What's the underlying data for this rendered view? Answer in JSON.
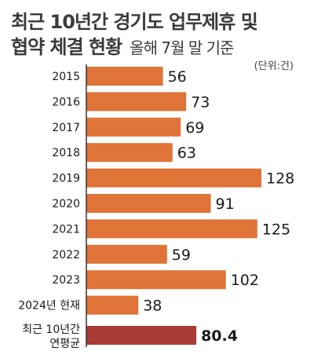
{
  "title": {
    "line1": "최근 10년간 경기도 업무제휴 및",
    "line2_main": "협약 체결 현황",
    "line2_sub": "올해 7월 말 기준"
  },
  "unit_label": "(단위:건)",
  "colors": {
    "bar": "#e07338",
    "avg_bar": "#a83a35",
    "axis": "#333333",
    "text": "#1a1a1a"
  },
  "chart_data": {
    "type": "bar",
    "orientation": "horizontal",
    "categories": [
      "2015",
      "2016",
      "2017",
      "2018",
      "2019",
      "2020",
      "2021",
      "2022",
      "2023",
      "2024년 현재",
      "최근 10년간\n연평균"
    ],
    "values": [
      56,
      73,
      69,
      63,
      128,
      91,
      125,
      59,
      102,
      38,
      80.4
    ],
    "highlight_index": 10,
    "xlim": [
      0,
      128
    ],
    "grid": false,
    "legend": "none"
  }
}
